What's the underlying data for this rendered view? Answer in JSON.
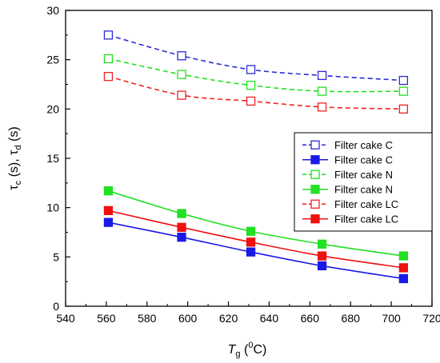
{
  "chart_data": {
    "type": "line",
    "x": [
      561,
      597,
      631,
      666,
      706
    ],
    "xlim": [
      540,
      720
    ],
    "ylim": [
      0,
      30
    ],
    "x_ticks": [
      "540",
      "560",
      "580",
      "600",
      "620",
      "640",
      "660",
      "680",
      "700",
      "720"
    ],
    "y_ticks": [
      "0",
      "5",
      "10",
      "15",
      "20",
      "25",
      "30"
    ],
    "xlabel": {
      "main": "T",
      "sub": "g",
      "unit_open": " (",
      "sup": "0",
      "unit_close": "C)"
    },
    "ylabel": {
      "p1": "τ",
      "s1": "c",
      "mid": " (s), ",
      "p2": "τ",
      "s2": "d",
      "end": " (s)"
    },
    "grid": false,
    "legend_position": "right",
    "series": [
      {
        "name": "Filter cake C",
        "color": "#2b2bd6",
        "dashed": true,
        "filled": false,
        "values": [
          27.5,
          25.4,
          24.0,
          23.4,
          22.9
        ]
      },
      {
        "name": "Filter cake C",
        "color": "#1a1ae6",
        "dashed": false,
        "filled": true,
        "values": [
          8.5,
          7.0,
          5.5,
          4.1,
          2.8
        ]
      },
      {
        "name": "Filter cake N",
        "color": "#22e022",
        "dashed": true,
        "filled": false,
        "values": [
          25.1,
          23.5,
          22.4,
          21.8,
          21.8
        ]
      },
      {
        "name": "Filter cake N",
        "color": "#22e022",
        "dashed": false,
        "filled": true,
        "values": [
          11.7,
          9.4,
          7.6,
          6.3,
          5.1
        ]
      },
      {
        "name": "Filter cake LC",
        "color": "#ee2222",
        "dashed": true,
        "filled": false,
        "values": [
          23.3,
          21.4,
          20.8,
          20.2,
          20.0
        ]
      },
      {
        "name": "Filter cake LC",
        "color": "#ee1111",
        "dashed": false,
        "filled": true,
        "values": [
          9.7,
          8.0,
          6.5,
          5.1,
          3.9
        ]
      }
    ]
  }
}
